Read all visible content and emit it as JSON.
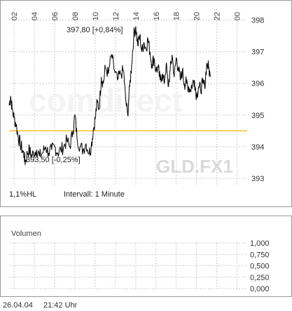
{
  "price_chart": {
    "watermark_brand": "comdirect",
    "watermark_symbol": "GLD.FX1",
    "hl_label": "1,1%HL",
    "interval_label": "Intervall: 1 Minute",
    "high_label": "397,80 [+0,84%]",
    "low_label": "393,50 [-0,25%]",
    "reference_color": "#f2b600"
  },
  "volume_chart": {
    "title": "Volumen",
    "y_ticks": [
      "1,000",
      "0,750",
      "0,500",
      "0,250",
      "0,000"
    ]
  },
  "footer": {
    "date": "26.04.04",
    "time": "21:42 Uhr"
  },
  "chart_data": {
    "type": "line",
    "title": "",
    "xlabel": "",
    "ylabel": "",
    "x_ticks": [
      "02",
      "04",
      "06",
      "08",
      "10",
      "12",
      "14",
      "16",
      "18",
      "20",
      "22",
      "00"
    ],
    "y_ticks": [
      "398",
      "397",
      "396",
      "395",
      "394",
      "393"
    ],
    "ylim": [
      392.8,
      398.3
    ],
    "xlim": [
      1.5,
      25.0
    ],
    "reference_value": 394.5,
    "high": {
      "x": 14.0,
      "y": 397.8
    },
    "low": {
      "x": 3.1,
      "y": 393.5
    },
    "grid": true,
    "series": [
      {
        "x": [
          1.5,
          1.65,
          1.8,
          2.0,
          2.2,
          2.4,
          2.6,
          2.8,
          3.0,
          3.1,
          3.3,
          3.5,
          3.7,
          3.9,
          4.2,
          4.5,
          4.8,
          5.1,
          5.4,
          5.7,
          6.0,
          6.3,
          6.6,
          6.9,
          7.2,
          7.5,
          7.8,
          8.0,
          8.2,
          8.5,
          8.8,
          9.1,
          9.4,
          9.6,
          9.8,
          10.0,
          10.2,
          10.4,
          10.6,
          10.8,
          11.0,
          11.3,
          11.6,
          11.9,
          12.2,
          12.5,
          12.8,
          13.0,
          13.2,
          13.4,
          13.6,
          13.8,
          14.0,
          14.2,
          14.4,
          14.6,
          14.8,
          15.0,
          15.2,
          15.4,
          15.6,
          15.8,
          16.0,
          16.2,
          16.4,
          16.6,
          16.8,
          17.0,
          17.2,
          17.4,
          17.6,
          17.8,
          18.0,
          18.2,
          18.4,
          18.6,
          18.8,
          19.0,
          19.2,
          19.4,
          19.6,
          19.8,
          20.0,
          20.2,
          20.4,
          20.6,
          20.8,
          21.0,
          21.2,
          21.35
        ],
        "y": [
          395.3,
          395.6,
          395.2,
          394.9,
          394.7,
          394.3,
          394.1,
          393.9,
          393.7,
          393.5,
          393.8,
          393.9,
          393.7,
          393.8,
          393.9,
          393.7,
          393.8,
          394.0,
          393.8,
          393.9,
          394.0,
          393.8,
          393.9,
          394.0,
          394.2,
          394.0,
          394.5,
          395.0,
          394.3,
          394.0,
          393.9,
          394.1,
          393.8,
          394.0,
          394.5,
          394.9,
          395.4,
          395.2,
          396.2,
          396.0,
          396.5,
          396.3,
          396.9,
          396.4,
          396.1,
          396.3,
          396.4,
          395.5,
          395.0,
          395.9,
          396.6,
          397.5,
          397.8,
          397.2,
          397.5,
          397.0,
          397.3,
          397.1,
          397.4,
          397.0,
          396.6,
          396.8,
          396.4,
          396.5,
          396.1,
          396.3,
          396.0,
          396.6,
          395.9,
          396.4,
          396.9,
          396.2,
          396.8,
          396.5,
          396.1,
          396.4,
          396.0,
          396.0,
          395.9,
          395.8,
          396.0,
          396.1,
          395.6,
          395.9,
          395.8,
          396.0,
          395.9,
          396.6,
          396.5,
          396.2
        ]
      }
    ]
  }
}
